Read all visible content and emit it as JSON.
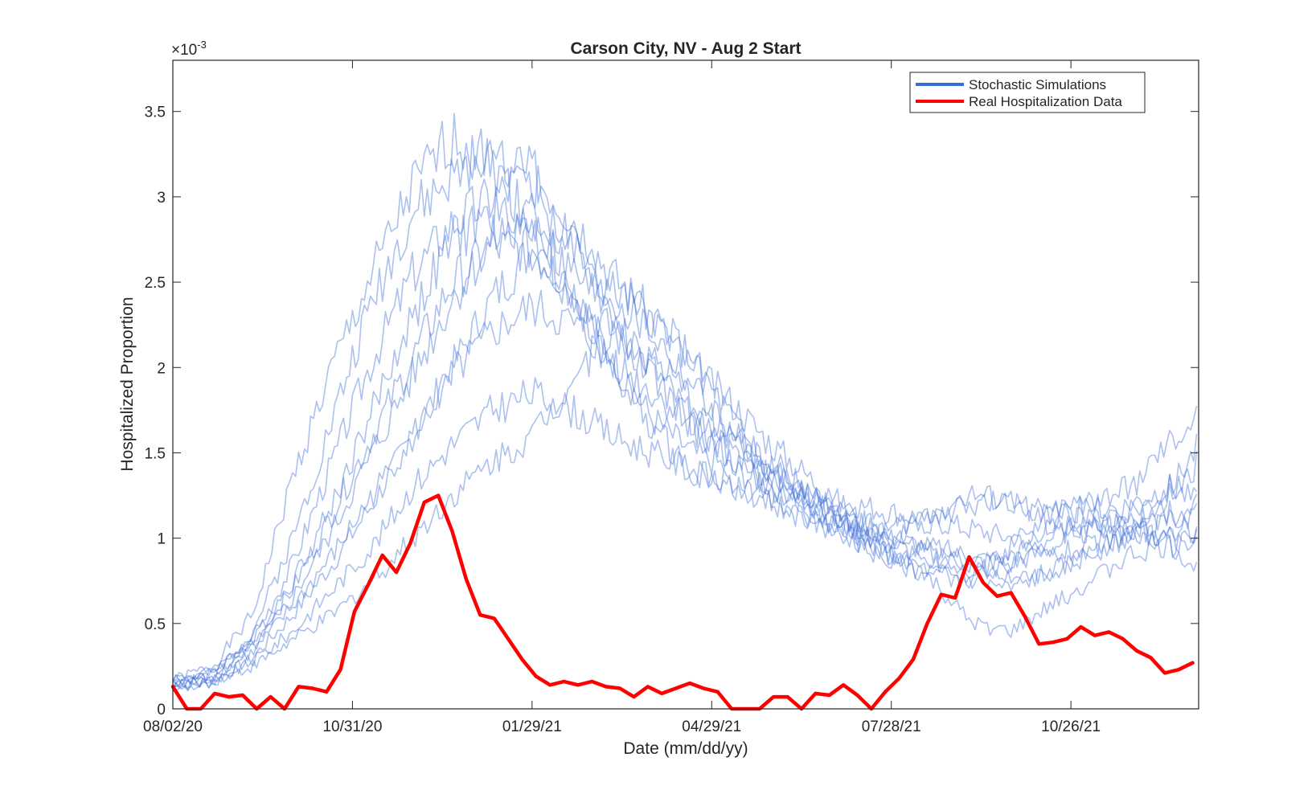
{
  "chart_data": {
    "type": "line",
    "title": "Carson City, NV - Aug 2 Start",
    "xlabel": "Date (mm/dd/yy)",
    "ylabel": "Hospitalized Proportion",
    "y_exponent": {
      "base": "×10",
      "power": "-3"
    },
    "x_tick_labels": [
      "08/02/20",
      "10/31/20",
      "01/29/21",
      "04/29/21",
      "07/28/21",
      "10/26/21"
    ],
    "x_tick_days": [
      0,
      90,
      180,
      270,
      360,
      450
    ],
    "x_unit": "days since 08/02/20",
    "xlim": [
      0,
      514
    ],
    "y_tick_labels": [
      "0",
      "0.5",
      "1",
      "1.5",
      "2",
      "2.5",
      "3",
      "3.5"
    ],
    "y_ticks": [
      0,
      0.5,
      1,
      1.5,
      2,
      2.5,
      3,
      3.5
    ],
    "ylim": [
      0,
      3.8
    ],
    "y_unit": "x10^-3",
    "grid": false,
    "legend": {
      "placement": "top-right",
      "entries": [
        {
          "name": "Stochastic Simulations",
          "color": "#3a6bd6"
        },
        {
          "name": "Real Hospitalization Data",
          "color": "#ff0000"
        }
      ]
    },
    "colors": {
      "simulations": "#3a6bd6",
      "real": "#ff0000",
      "axes": "#262626"
    },
    "series": [
      {
        "name": "Real Hospitalization Data",
        "color": "#ff0000",
        "x": [
          0,
          7,
          14,
          21,
          28,
          35,
          42,
          49,
          56,
          63,
          70,
          77,
          84,
          91,
          98,
          105,
          112,
          119,
          126,
          133,
          140,
          147,
          154,
          161,
          168,
          175,
          182,
          189,
          196,
          203,
          210,
          217,
          224,
          231,
          238,
          245,
          252,
          259,
          266,
          273,
          280,
          287,
          294,
          301,
          308,
          315,
          322,
          329,
          336,
          343,
          350,
          357,
          364,
          371,
          378,
          385,
          392,
          399,
          406,
          413,
          420,
          427,
          434,
          441,
          448,
          455,
          462,
          469,
          476,
          483,
          490,
          497,
          504,
          511
        ],
        "y": [
          0.13,
          0.0,
          0.0,
          0.09,
          0.07,
          0.08,
          0.0,
          0.07,
          0.0,
          0.13,
          0.12,
          0.1,
          0.23,
          0.57,
          0.73,
          0.9,
          0.8,
          0.97,
          1.21,
          1.25,
          1.04,
          0.76,
          0.55,
          0.53,
          0.41,
          0.29,
          0.19,
          0.14,
          0.16,
          0.14,
          0.16,
          0.13,
          0.12,
          0.07,
          0.13,
          0.09,
          0.12,
          0.15,
          0.12,
          0.1,
          0.0,
          0.0,
          0.0,
          0.07,
          0.07,
          0.0,
          0.09,
          0.08,
          0.14,
          0.08,
          0.0,
          0.1,
          0.18,
          0.29,
          0.5,
          0.67,
          0.65,
          0.89,
          0.74,
          0.66,
          0.68,
          0.54,
          0.38,
          0.39,
          0.41,
          0.48,
          0.43,
          0.45,
          0.41,
          0.34,
          0.3,
          0.21,
          0.23,
          0.27
        ]
      }
    ],
    "simulations": {
      "name": "Stochastic Simulations",
      "color": "#3a6bd6",
      "count": 10,
      "x": [
        0,
        20,
        40,
        60,
        80,
        100,
        120,
        140,
        160,
        180,
        200,
        220,
        240,
        260,
        280,
        300,
        320,
        340,
        360,
        380,
        400,
        420,
        440,
        460,
        480,
        500,
        514
      ],
      "runs": [
        [
          0.17,
          0.25,
          0.55,
          1.35,
          2.0,
          2.55,
          3.05,
          3.35,
          3.2,
          2.85,
          2.4,
          2.0,
          1.65,
          1.4,
          1.3,
          1.2,
          1.1,
          1.05,
          1.0,
          0.95,
          0.85,
          0.75,
          0.8,
          0.9,
          1.05,
          1.25,
          1.45
        ],
        [
          0.15,
          0.2,
          0.45,
          1.0,
          1.7,
          2.4,
          2.9,
          3.1,
          3.3,
          3.1,
          2.7,
          2.3,
          1.95,
          1.65,
          1.5,
          1.35,
          1.2,
          1.1,
          1.05,
          1.15,
          1.25,
          1.2,
          1.15,
          1.2,
          1.3,
          1.55,
          1.7
        ],
        [
          0.12,
          0.18,
          0.4,
          0.85,
          1.45,
          2.05,
          2.55,
          2.85,
          3.0,
          3.15,
          2.9,
          2.55,
          2.3,
          2.0,
          1.8,
          1.55,
          1.35,
          1.15,
          1.0,
          0.95,
          0.9,
          0.85,
          0.95,
          1.05,
          1.15,
          1.3,
          1.55
        ],
        [
          0.18,
          0.22,
          0.42,
          0.75,
          1.2,
          1.75,
          2.3,
          2.75,
          2.9,
          2.8,
          2.55,
          2.4,
          2.2,
          1.9,
          1.6,
          1.4,
          1.25,
          1.1,
          1.0,
          1.1,
          1.2,
          1.2,
          1.15,
          1.1,
          1.05,
          1.0,
          1.15
        ],
        [
          0.14,
          0.17,
          0.35,
          0.65,
          1.05,
          1.5,
          1.95,
          2.4,
          2.75,
          2.9,
          2.7,
          2.45,
          2.3,
          2.05,
          1.7,
          1.35,
          1.15,
          1.0,
          0.85,
          0.8,
          0.75,
          0.95,
          1.1,
          1.2,
          1.1,
          0.95,
          1.0
        ],
        [
          0.16,
          0.2,
          0.38,
          0.7,
          1.15,
          1.6,
          2.05,
          2.5,
          2.7,
          2.7,
          2.45,
          2.2,
          2.0,
          1.7,
          1.45,
          1.3,
          1.15,
          1.05,
          0.95,
          0.9,
          0.85,
          0.9,
          1.0,
          1.1,
          1.2,
          1.3,
          1.2
        ],
        [
          0.13,
          0.15,
          0.3,
          0.55,
          0.85,
          1.2,
          1.6,
          2.0,
          2.4,
          2.7,
          2.45,
          2.05,
          1.7,
          1.5,
          1.4,
          1.3,
          1.25,
          1.2,
          1.15,
          1.1,
          1.05,
          1.0,
          1.05,
          1.1,
          1.05,
          1.0,
          0.95
        ],
        [
          0.17,
          0.19,
          0.33,
          0.6,
          0.9,
          1.25,
          1.6,
          1.95,
          2.2,
          2.35,
          2.25,
          2.05,
          1.85,
          1.7,
          1.55,
          1.4,
          1.2,
          1.05,
          0.9,
          0.8,
          0.75,
          0.7,
          0.8,
          0.9,
          1.05,
          1.15,
          1.0
        ],
        [
          0.12,
          0.14,
          0.28,
          0.45,
          0.7,
          0.95,
          1.3,
          1.55,
          1.75,
          1.85,
          1.75,
          1.6,
          1.5,
          1.4,
          1.3,
          1.2,
          1.1,
          1.0,
          0.9,
          0.85,
          0.8,
          0.85,
          0.9,
          0.95,
          1.0,
          1.1,
          1.2
        ],
        [
          0.15,
          0.16,
          0.25,
          0.4,
          0.55,
          0.75,
          1.0,
          1.25,
          1.45,
          1.6,
          1.95,
          2.2,
          2.05,
          1.8,
          1.6,
          1.45,
          1.25,
          1.05,
          0.9,
          0.75,
          0.5,
          0.45,
          0.6,
          0.75,
          0.9,
          0.95,
          0.8
        ]
      ]
    }
  }
}
